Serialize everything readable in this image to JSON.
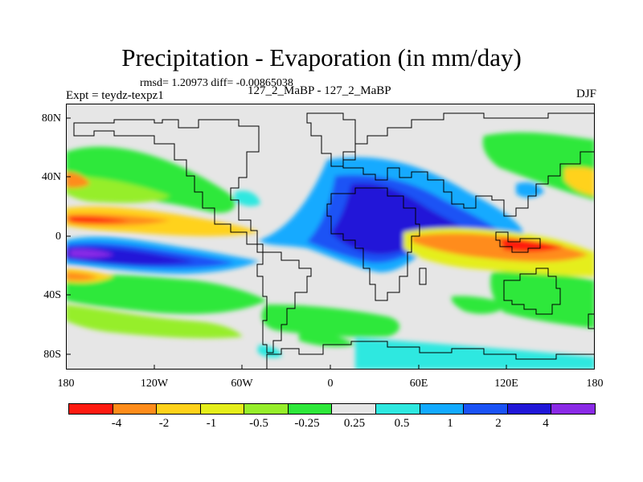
{
  "title": "Precipitation - Evaporation (in mm/day)",
  "stats": "rmsd= 1.20973 diff= -0.00865038",
  "expt": "Expt = teydz-texpz1",
  "case": "127_2_MaBP - 127_2_MaBP",
  "season": "DJF",
  "y_ticks": [
    "80N",
    "40N",
    "0",
    "40S",
    "80S"
  ],
  "x_ticks": [
    "180",
    "120W",
    "60W",
    "0",
    "60E",
    "120E",
    "180"
  ],
  "colorbar": {
    "labels": [
      "-4",
      "-2",
      "-1",
      "-0.5",
      "-0.25",
      "0.25",
      "0.5",
      "1",
      "2",
      "4"
    ],
    "colors": [
      "#ff1a10",
      "#ff8c1a",
      "#ffd21a",
      "#e5ee1a",
      "#96ee2a",
      "#2ee83a",
      "#e6e6e6",
      "#2ee8e0",
      "#12aaff",
      "#1a52f5",
      "#2016d8",
      "#8a2ae6"
    ]
  }
}
